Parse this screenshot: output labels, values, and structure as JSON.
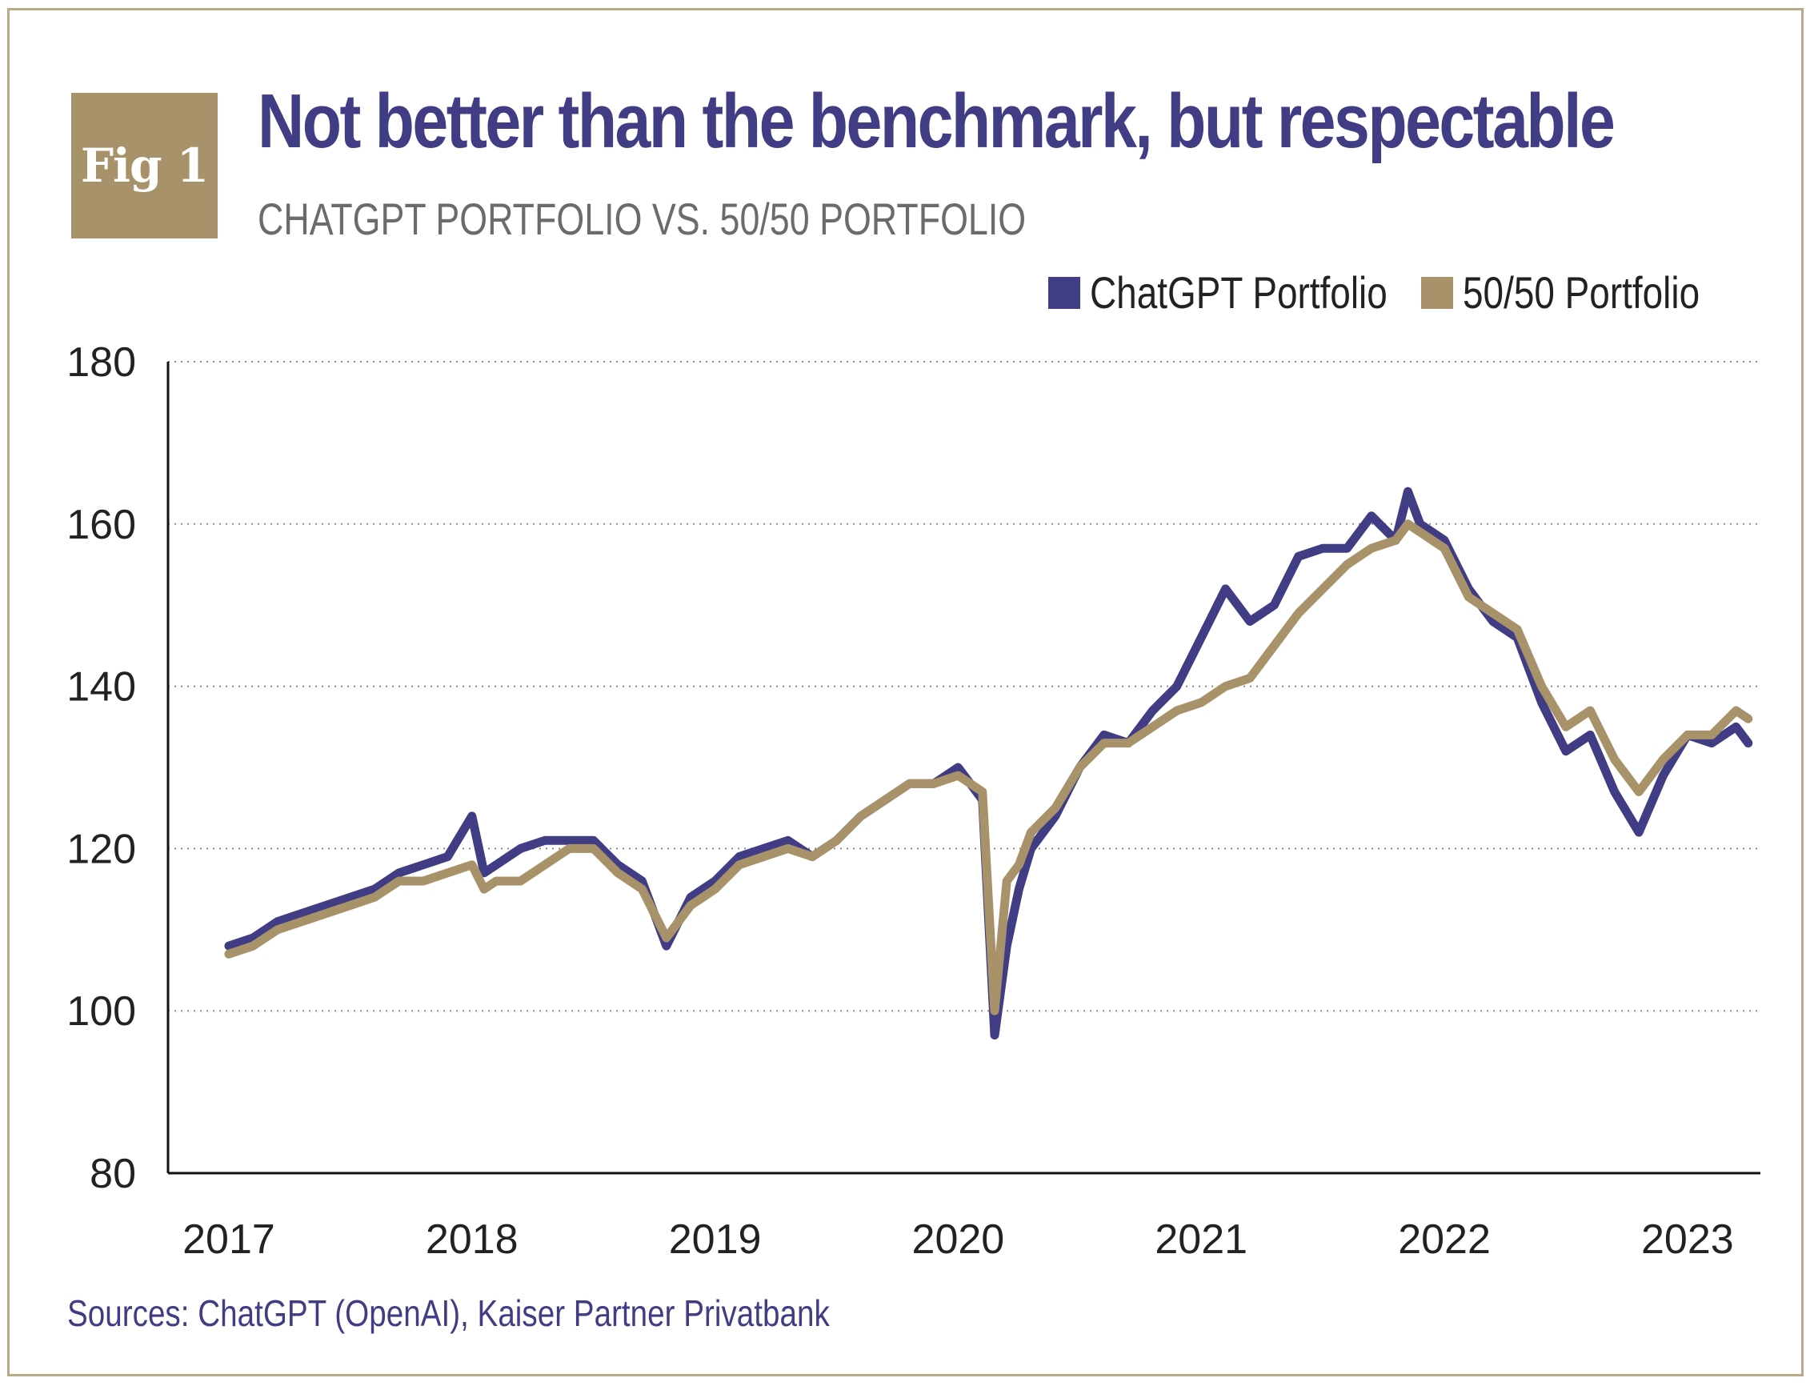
{
  "figure": {
    "badge": "Fig 1",
    "title": "Not better than the benchmark, but respectable",
    "subtitle": "CHATGPT PORTFOLIO VS. 50/50 PORTFOLIO",
    "source": "Sources: ChatGPT (OpenAI), Kaiser Partner Privatbank"
  },
  "colors": {
    "chatgpt": "#403d84",
    "fifty_fifty": "#a8926a",
    "frame": "#b9ab88",
    "badge": "#a8926a"
  },
  "chart_data": {
    "type": "line",
    "title": "Not better than the benchmark, but respectable",
    "subtitle": "CHATGPT PORTFOLIO VS. 50/50 PORTFOLIO",
    "xlabel": "",
    "ylabel": "",
    "ylim": [
      80,
      180
    ],
    "yticks": [
      80,
      100,
      120,
      140,
      160,
      180
    ],
    "xticks": [
      "2017",
      "2018",
      "2019",
      "2020",
      "2021",
      "2022",
      "2023"
    ],
    "grid": "horizontal dotted",
    "legend_position": "top-right",
    "x": [
      2017.0,
      2017.1,
      2017.2,
      2017.3,
      2017.4,
      2017.5,
      2017.6,
      2017.7,
      2017.8,
      2017.9,
      2018.0,
      2018.05,
      2018.1,
      2018.2,
      2018.3,
      2018.4,
      2018.5,
      2018.6,
      2018.7,
      2018.8,
      2018.9,
      2019.0,
      2019.1,
      2019.2,
      2019.3,
      2019.4,
      2019.5,
      2019.6,
      2019.7,
      2019.8,
      2019.9,
      2020.0,
      2020.1,
      2020.15,
      2020.2,
      2020.25,
      2020.3,
      2020.4,
      2020.5,
      2020.6,
      2020.7,
      2020.8,
      2020.9,
      2021.0,
      2021.1,
      2021.2,
      2021.3,
      2021.4,
      2021.5,
      2021.6,
      2021.7,
      2021.8,
      2021.85,
      2021.9,
      2022.0,
      2022.1,
      2022.2,
      2022.3,
      2022.4,
      2022.5,
      2022.6,
      2022.7,
      2022.8,
      2022.9,
      2023.0,
      2023.1,
      2023.2,
      2023.25
    ],
    "series": [
      {
        "name": "ChatGPT Portfolio",
        "values": [
          108,
          109,
          111,
          112,
          113,
          114,
          115,
          117,
          118,
          119,
          124,
          117,
          118,
          120,
          121,
          121,
          121,
          118,
          116,
          108,
          114,
          116,
          119,
          120,
          121,
          119,
          121,
          124,
          126,
          128,
          128,
          130,
          126,
          97,
          108,
          115,
          120,
          124,
          130,
          134,
          133,
          137,
          140,
          146,
          152,
          148,
          150,
          156,
          157,
          157,
          161,
          158,
          164,
          160,
          158,
          152,
          148,
          146,
          138,
          132,
          134,
          127,
          122,
          129,
          134,
          133,
          135,
          133
        ]
      },
      {
        "name": "50/50 Portfolio",
        "values": [
          107,
          108,
          110,
          111,
          112,
          113,
          114,
          116,
          116,
          117,
          118,
          115,
          116,
          116,
          118,
          120,
          120,
          117,
          115,
          109,
          113,
          115,
          118,
          119,
          120,
          119,
          121,
          124,
          126,
          128,
          128,
          129,
          127,
          100,
          116,
          118,
          122,
          125,
          130,
          133,
          133,
          135,
          137,
          138,
          140,
          141,
          145,
          149,
          152,
          155,
          157,
          158,
          160,
          159,
          157,
          151,
          149,
          147,
          140,
          135,
          137,
          131,
          127,
          131,
          134,
          134,
          137,
          136
        ]
      }
    ]
  }
}
